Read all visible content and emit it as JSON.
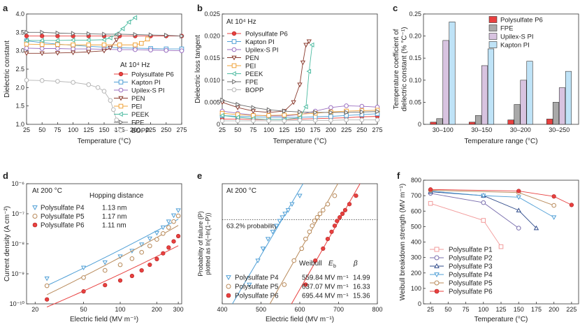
{
  "chart_data": [
    {
      "type": "scatter",
      "panel_label": "a",
      "xlabel": "Temperature (°C)",
      "ylabel": "Dielectric constant",
      "xlim": [
        25,
        275
      ],
      "ylim": [
        1.0,
        4.0
      ],
      "xticks": [
        25,
        50,
        75,
        100,
        125,
        150,
        175,
        200,
        225,
        250,
        275
      ],
      "yticks": [
        1.0,
        1.5,
        2.0,
        2.5,
        3.0,
        3.5,
        4.0
      ],
      "annotation": "At 10⁴ Hz",
      "series": [
        {
          "name": "Polysulfate P6",
          "color": "#e8403f",
          "marker": "circle-filled",
          "x": [
            25,
            50,
            75,
            100,
            125,
            150,
            175,
            200,
            225,
            250,
            275
          ],
          "y": [
            3.4,
            3.4,
            3.4,
            3.4,
            3.4,
            3.4,
            3.4,
            3.4,
            3.4,
            3.4,
            3.4
          ]
        },
        {
          "name": "Kapton PI",
          "color": "#4f9fd6",
          "marker": "square",
          "x": [
            25,
            50,
            75,
            100,
            125,
            150,
            175,
            200,
            225,
            250,
            275
          ],
          "y": [
            3.27,
            3.22,
            3.18,
            3.15,
            3.12,
            3.1,
            3.08,
            3.07,
            3.06,
            3.05,
            3.05
          ]
        },
        {
          "name": "Upilex-S PI",
          "color": "#9b6fc0",
          "marker": "circle",
          "x": [
            25,
            50,
            75,
            100,
            125,
            150,
            175,
            200,
            225,
            250,
            275
          ],
          "y": [
            3.07,
            3.06,
            3.06,
            3.05,
            3.05,
            3.04,
            3.03,
            3.03,
            3.02,
            3.01,
            3.0
          ]
        },
        {
          "name": "PEN",
          "color": "#8a3b2e",
          "marker": "triangle-down",
          "x": [
            25,
            50,
            75,
            100,
            125,
            150,
            160,
            170
          ],
          "y": [
            2.93,
            2.93,
            2.94,
            2.95,
            2.97,
            3.0,
            3.08,
            3.3
          ]
        },
        {
          "name": "PEI",
          "color": "#f0a33a",
          "marker": "square",
          "x": [
            25,
            50,
            75,
            100,
            125,
            150,
            175,
            200,
            210,
            220
          ],
          "y": [
            3.18,
            3.17,
            3.17,
            3.16,
            3.16,
            3.16,
            3.16,
            3.16,
            3.2,
            3.32
          ]
        },
        {
          "name": "PEEK",
          "color": "#4dbba1",
          "marker": "triangle-left",
          "x": [
            25,
            50,
            75,
            100,
            125,
            150,
            160,
            170,
            180,
            190,
            200
          ],
          "y": [
            3.28,
            3.28,
            3.28,
            3.29,
            3.29,
            3.3,
            3.35,
            3.45,
            3.6,
            3.78,
            3.9
          ]
        },
        {
          "name": "FPE",
          "color": "#6a6a6a",
          "marker": "triangle-right",
          "x": [
            25,
            50,
            75,
            100,
            125,
            150,
            175,
            200,
            225,
            250,
            275
          ],
          "y": [
            3.5,
            3.5,
            3.48,
            3.47,
            3.46,
            3.45,
            3.45,
            3.44,
            3.43,
            3.42,
            3.4
          ]
        },
        {
          "name": "BOPP",
          "color": "#b5b5b5",
          "marker": "circle",
          "x": [
            25,
            50,
            75,
            100,
            125,
            140,
            150,
            160,
            165,
            170
          ],
          "y": [
            2.2,
            2.19,
            2.17,
            2.14,
            2.08,
            2.0,
            1.9,
            1.65,
            1.4,
            1.12
          ]
        }
      ]
    },
    {
      "type": "scatter",
      "panel_label": "b",
      "xlabel": "Temperature (°C)",
      "ylabel": "Dielectric loss tangent",
      "xlim": [
        25,
        275
      ],
      "ylim": [
        0,
        0.025
      ],
      "xticks": [
        25,
        50,
        75,
        100,
        125,
        150,
        175,
        200,
        225,
        250,
        275
      ],
      "yticks": [
        "0",
        "0.005",
        "0.010",
        "0.015",
        "0.020",
        "0.025"
      ],
      "annotation": "At 10⁴ Hz",
      "series": [
        {
          "name": "Polysulfate P6",
          "color": "#e8403f",
          "marker": "circle-filled",
          "x": [
            25,
            50,
            75,
            100,
            125,
            150,
            175,
            200,
            225,
            250,
            275
          ],
          "y": [
            0.0012,
            0.0012,
            0.0011,
            0.0011,
            0.0011,
            0.0012,
            0.0013,
            0.0014,
            0.0015,
            0.0017,
            0.0018
          ]
        },
        {
          "name": "Kapton PI",
          "color": "#4f9fd6",
          "marker": "square",
          "x": [
            25,
            50,
            75,
            100,
            125,
            150,
            175,
            200,
            225,
            250,
            275
          ],
          "y": [
            0.002,
            0.0018,
            0.0017,
            0.0016,
            0.0016,
            0.0016,
            0.0017,
            0.0018,
            0.002,
            0.0022,
            0.0024
          ]
        },
        {
          "name": "Upilex-S PI",
          "color": "#9b6fc0",
          "marker": "circle",
          "x": [
            25,
            50,
            75,
            100,
            125,
            150,
            175,
            200,
            225,
            250,
            275
          ],
          "y": [
            0.003,
            0.0025,
            0.0021,
            0.0019,
            0.0019,
            0.0022,
            0.003,
            0.0038,
            0.0042,
            0.0041,
            0.0039
          ]
        },
        {
          "name": "PEN",
          "color": "#8a3b2e",
          "marker": "triangle-down",
          "x": [
            25,
            50,
            75,
            100,
            125,
            140,
            150,
            155,
            160,
            165
          ],
          "y": [
            0.005,
            0.0038,
            0.003,
            0.0027,
            0.003,
            0.005,
            0.009,
            0.014,
            0.018,
            0.0188
          ]
        },
        {
          "name": "PEI",
          "color": "#f0a33a",
          "marker": "square",
          "x": [
            25,
            50,
            75,
            100,
            125,
            150,
            175,
            200,
            225,
            250,
            275
          ],
          "y": [
            0.0025,
            0.0022,
            0.002,
            0.002,
            0.0021,
            0.0023,
            0.0025,
            0.0028,
            0.003,
            0.0031,
            0.0032
          ]
        },
        {
          "name": "PEEK",
          "color": "#4dbba1",
          "marker": "triangle-left",
          "x": [
            25,
            50,
            75,
            100,
            125,
            150,
            160,
            165,
            170
          ],
          "y": [
            0.002,
            0.0016,
            0.0013,
            0.0011,
            0.0011,
            0.0015,
            0.004,
            0.012,
            0.018
          ]
        },
        {
          "name": "FPE",
          "color": "#6a6a6a",
          "marker": "triangle-right",
          "x": [
            25,
            50,
            75,
            100,
            125,
            150,
            175,
            200,
            225,
            250,
            275
          ],
          "y": [
            0.0055,
            0.0045,
            0.0038,
            0.0033,
            0.003,
            0.0028,
            0.0027,
            0.0027,
            0.0027,
            0.0028,
            0.0029
          ]
        },
        {
          "name": "BOPP",
          "color": "#b5b5b5",
          "marker": "circle",
          "x": [
            25,
            50,
            75,
            100,
            125,
            150,
            175,
            200,
            225,
            250,
            275
          ],
          "y": [
            0.0008,
            0.0008,
            0.0008,
            0.0008,
            0.0008,
            0.0009,
            0.0009,
            0.0009,
            0.001,
            0.001,
            0.001
          ]
        }
      ]
    },
    {
      "type": "bar",
      "panel_label": "c",
      "xlabel": "Temperature range (°C)",
      "ylabel": "Temperature coefficient of dielectric constant (% °C⁻¹)",
      "ylim": [
        0,
        0.25
      ],
      "yticks": [
        "0",
        "0.05",
        "0.10",
        "0.15",
        "0.20",
        "0.25"
      ],
      "categories": [
        "30–100",
        "30–150",
        "30–200",
        "30–250"
      ],
      "series": [
        {
          "name": "Polysulfate P6",
          "color": "#e8403f",
          "values": [
            0.005,
            0.005,
            0.01,
            0.012
          ]
        },
        {
          "name": "FPE",
          "color": "#a9a9a9",
          "values": [
            0.013,
            0.02,
            0.045,
            0.05
          ]
        },
        {
          "name": "Upilex-S PI",
          "color": "#d8c3e0",
          "values": [
            0.19,
            0.133,
            0.1,
            0.083
          ]
        },
        {
          "name": "Kapton PI",
          "color": "#bfe3f7",
          "values": [
            0.232,
            0.171,
            0.143,
            0.12
          ]
        }
      ]
    },
    {
      "type": "scatter",
      "panel_label": "d",
      "xlabel": "Electric field (MV m⁻¹)",
      "ylabel": "Current density (A cm⁻²)",
      "xscale": "log",
      "yscale": "log",
      "xlim": [
        17,
        320
      ],
      "ylim": [
        1e-10,
        1e-06
      ],
      "xticks": [
        20,
        50,
        100,
        200,
        300
      ],
      "yticks": [
        "10⁻¹⁰",
        "10⁻⁹",
        "10⁻⁸",
        "10⁻⁷",
        "10⁻⁶"
      ],
      "annotation": "At 200 °C",
      "legend_header": "Hopping distance",
      "series": [
        {
          "name": "Polysulfate P4",
          "hopping": "1.13 nm",
          "color": "#4f9fd6",
          "marker": "triangle-down",
          "x": [
            25,
            50,
            75,
            100,
            125,
            150,
            175,
            200,
            225,
            250,
            275,
            300
          ],
          "y": [
            7e-10,
            1.6e-09,
            2.4e-09,
            3.8e-09,
            5.8e-09,
            9.5e-09,
            1.5e-08,
            2.3e-08,
            3.5e-08,
            5.5e-08,
            8.8e-08,
            1.3e-07
          ]
        },
        {
          "name": "Polysulfate P5",
          "hopping": "1.17 nm",
          "color": "#b88a5a",
          "marker": "circle",
          "x": [
            25,
            50,
            75,
            100,
            125,
            150,
            175,
            200,
            225,
            250,
            275,
            300
          ],
          "y": [
            4e-10,
            7.5e-10,
            1.3e-09,
            2e-09,
            3.2e-09,
            5.2e-09,
            8.5e-09,
            1.4e-08,
            2.2e-08,
            3.5e-08,
            5.5e-08,
            8.5e-08
          ]
        },
        {
          "name": "Polysulfate P6",
          "hopping": "1.11 nm",
          "color": "#e8403f",
          "marker": "circle-filled",
          "x": [
            25,
            50,
            75,
            100,
            125,
            150,
            175,
            200,
            225,
            250,
            275,
            300
          ],
          "y": [
            1.4e-10,
            2.6e-10,
            4.2e-10,
            6e-10,
            8.5e-10,
            1.3e-09,
            2e-09,
            3.1e-09,
            4.8e-09,
            7.5e-09,
            1.2e-08,
            1.8e-08
          ]
        }
      ]
    },
    {
      "type": "scatter",
      "panel_label": "e",
      "xlabel": "Electric field (MV m⁻¹)",
      "ylabel": "Probability of failure (P) plotted as ln(−ln(1−P))",
      "xlim": [
        400,
        800
      ],
      "ylim": [
        -3.5,
        1.5
      ],
      "xticks": [
        400,
        500,
        600,
        700,
        800
      ],
      "annotation": "At 200 °C",
      "reference_line": {
        "y": 0,
        "label": "63.2% probability"
      },
      "legend_header": {
        "weibull": "Weibull",
        "eb_symbol": "E",
        "eb_sub": "b",
        "beta": "β"
      },
      "series": [
        {
          "name": "Polysulfate P4",
          "eb": "559.84 MV m⁻¹",
          "beta": "14.99",
          "color": "#4f9fd6",
          "marker": "triangle-down",
          "x": [
            470,
            492,
            505,
            518,
            530,
            540,
            548,
            555,
            562,
            570,
            580,
            600
          ],
          "y": [
            -2.7,
            -1.7,
            -1.2,
            -0.8,
            -0.5,
            -0.25,
            -0.05,
            0.1,
            0.25,
            0.4,
            0.65,
            1.0
          ]
        },
        {
          "name": "Polysulfate P5",
          "eb": "637.07 MV m⁻¹",
          "beta": "16.33",
          "color": "#b88a5a",
          "marker": "circle",
          "x": [
            560,
            585,
            605,
            615,
            625,
            632,
            638,
            645,
            652,
            660,
            672,
            690
          ],
          "y": [
            -2.7,
            -1.7,
            -1.2,
            -0.8,
            -0.5,
            -0.25,
            -0.05,
            0.1,
            0.25,
            0.4,
            0.65,
            1.0
          ]
        },
        {
          "name": "Polysulfate P6",
          "eb": "695.44 MV m⁻¹",
          "beta": "15.36",
          "color": "#e8403f",
          "marker": "circle-filled",
          "x": [
            615,
            640,
            660,
            672,
            682,
            690,
            696,
            703,
            710,
            717,
            728,
            745
          ],
          "y": [
            -2.7,
            -1.7,
            -1.2,
            -0.8,
            -0.5,
            -0.25,
            -0.05,
            0.1,
            0.25,
            0.4,
            0.65,
            1.0
          ]
        }
      ]
    },
    {
      "type": "line",
      "panel_label": "f",
      "xlabel": "Temperature (°C)",
      "ylabel": "Weibull breakdown strength (MV m⁻¹)",
      "xlim": [
        15,
        235
      ],
      "ylim": [
        0,
        800
      ],
      "xticks": [
        25,
        50,
        75,
        100,
        125,
        150,
        175,
        200,
        225
      ],
      "yticks": [
        0,
        100,
        200,
        300,
        400,
        500,
        600,
        700,
        800
      ],
      "series": [
        {
          "name": "Polysulfate P1",
          "color": "#f29b9b",
          "marker": "square",
          "x": [
            25,
            100,
            125
          ],
          "y": [
            650,
            540,
            370
          ]
        },
        {
          "name": "Polysulfate P2",
          "color": "#7a6fae",
          "marker": "circle",
          "x": [
            25,
            100,
            150
          ],
          "y": [
            715,
            655,
            490
          ]
        },
        {
          "name": "Polysulfate P3",
          "color": "#2e4a8a",
          "marker": "triangle-up",
          "x": [
            25,
            100,
            150,
            175
          ],
          "y": [
            725,
            700,
            605,
            490
          ]
        },
        {
          "name": "Polysulfate P4",
          "color": "#4f9fd6",
          "marker": "triangle-down",
          "x": [
            25,
            100,
            150,
            200
          ],
          "y": [
            730,
            700,
            690,
            560
          ]
        },
        {
          "name": "Polysulfate P5",
          "color": "#b88a5a",
          "marker": "circle",
          "x": [
            25,
            150,
            200
          ],
          "y": [
            735,
            720,
            637
          ]
        },
        {
          "name": "Polysulfate P6",
          "color": "#e8403f",
          "marker": "circle-filled",
          "x": [
            25,
            150,
            200,
            225
          ],
          "y": [
            740,
            730,
            695,
            640
          ]
        }
      ]
    }
  ]
}
